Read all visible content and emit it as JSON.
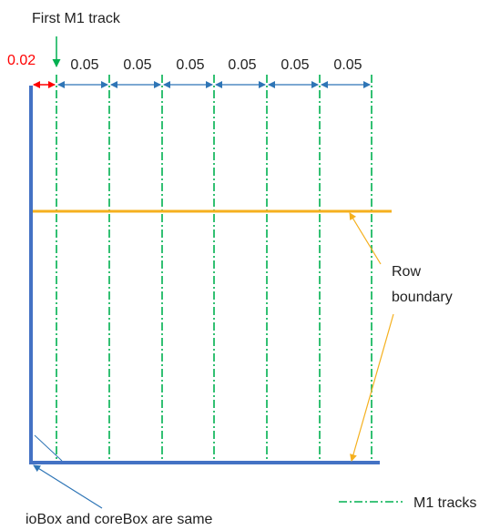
{
  "labels": {
    "first_track": "First M1 track",
    "offset": "0.02",
    "pitches": [
      "0.05",
      "0.05",
      "0.05",
      "0.05",
      "0.05",
      "0.05"
    ],
    "row_boundary_line1": "Row",
    "row_boundary_line2": "boundary",
    "iobox_note": "ioBox and coreBox are same",
    "legend_tracks": "M1 tracks"
  },
  "colors": {
    "box": "#4472c4",
    "track": "#00b050",
    "row_boundary": "#f5b01e",
    "dimension": "#2e75b6",
    "offset_highlight": "#ff0000"
  }
}
